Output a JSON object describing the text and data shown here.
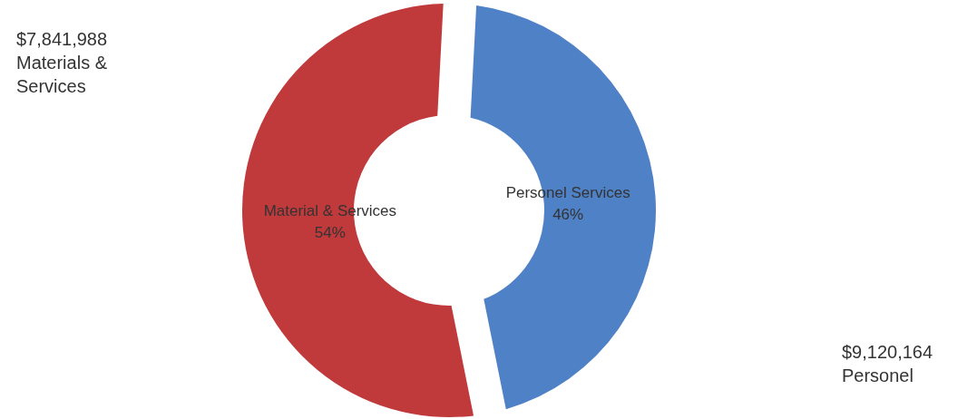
{
  "chart_data": {
    "type": "donut",
    "categories": [
      "Material & Services",
      "Personel Services"
    ],
    "values": [
      54,
      46
    ],
    "value_labels": [
      "54%",
      "46%"
    ],
    "colors": [
      "#c0393b",
      "#4f81c6"
    ],
    "annotations": [
      "$7,841,988 Materials & Services",
      "$9,120,164 Personel"
    ]
  }
}
